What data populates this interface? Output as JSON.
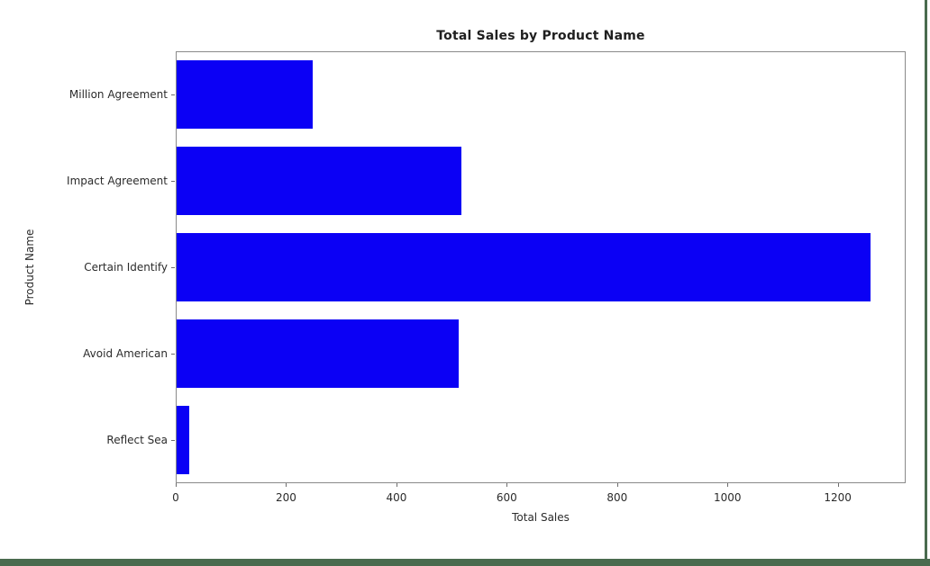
{
  "frame": {
    "border_color": "#4a6b4f",
    "background": "#ffffff"
  },
  "chart_data": {
    "type": "bar",
    "orientation": "horizontal",
    "title": "Total Sales by Product Name",
    "xlabel": "Total Sales",
    "ylabel": "Product Name",
    "categories": [
      "Million Agreement",
      "Impact Agreement",
      "Certain Identify",
      "Avoid American",
      "Reflect Sea"
    ],
    "values": [
      249,
      517,
      1260,
      513,
      24
    ],
    "xlim": [
      0,
      1323
    ],
    "xticks": [
      0,
      200,
      400,
      600,
      800,
      1000,
      1200
    ],
    "bar_color": "#0b00f5",
    "grid": false,
    "legend": null
  }
}
